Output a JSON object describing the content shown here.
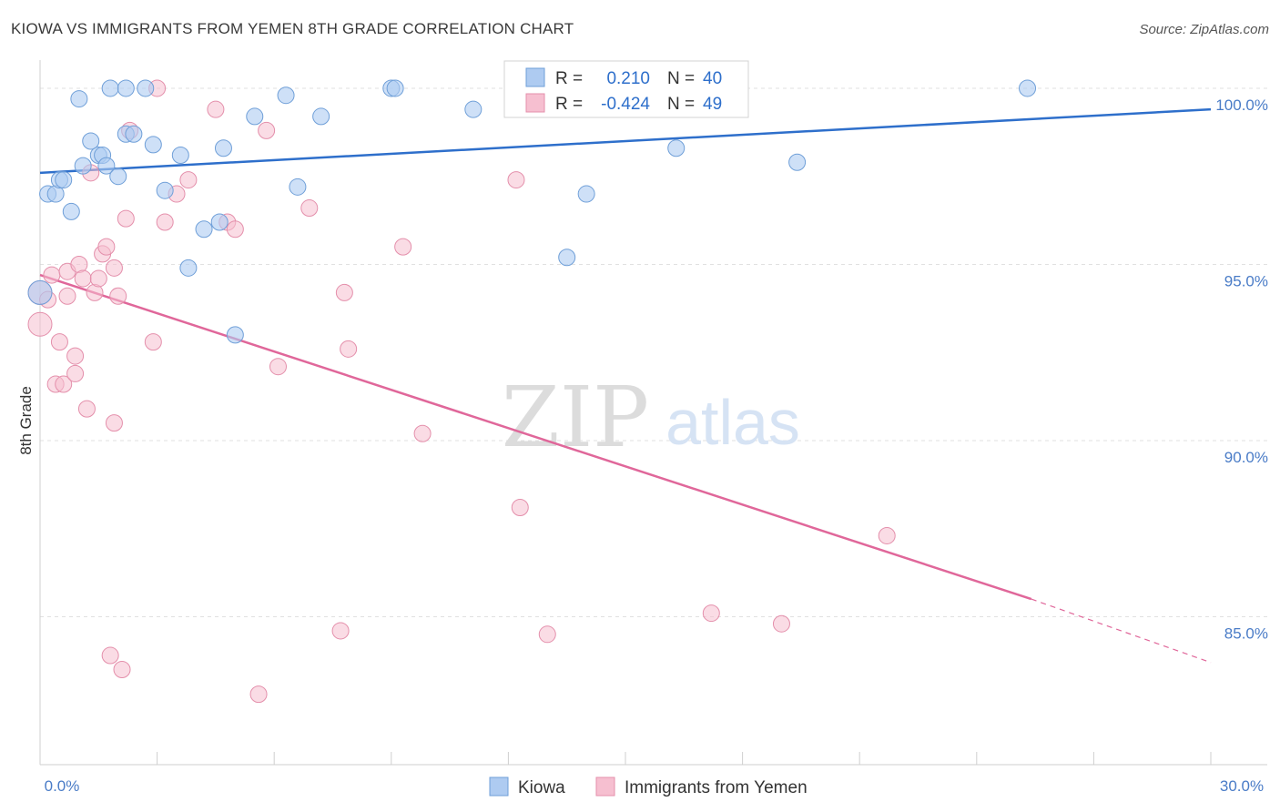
{
  "title": "KIOWA VS IMMIGRANTS FROM YEMEN 8TH GRADE CORRELATION CHART",
  "source": "Source: ZipAtlas.com",
  "watermark": {
    "zip": "ZIP",
    "atlas": "atlas"
  },
  "colors": {
    "blue_fill": "#aecbf1",
    "blue_stroke": "#6f9fd8",
    "blue_line": "#2e6fcb",
    "pink_fill": "#f6bfd0",
    "pink_stroke": "#e48fab",
    "pink_line": "#e0679a",
    "tick_text": "#4a7cc7",
    "grid": "#e1e1e1"
  },
  "legend": {
    "rows": [
      {
        "r_label": "R =",
        "r_value": "0.210",
        "n_label": "N =",
        "n_value": "40"
      },
      {
        "r_label": "R =",
        "r_value": "-0.424",
        "n_label": "N =",
        "n_value": "49"
      }
    ]
  },
  "chart_data": {
    "type": "scatter",
    "xlabel": "",
    "ylabel": "8th Grade",
    "xlim": [
      0,
      30
    ],
    "ylim": [
      80.8,
      100.8
    ],
    "x_tick_labels": [
      {
        "value": 0,
        "label": "0.0%"
      },
      {
        "value": 30,
        "label": "30.0%"
      }
    ],
    "y_tick_labels": [
      {
        "value": 100,
        "label": "100.0%"
      },
      {
        "value": 95,
        "label": "95.0%"
      },
      {
        "value": 90,
        "label": "90.0%"
      },
      {
        "value": 85,
        "label": "85.0%"
      }
    ],
    "grid": true,
    "legend_position": "top-center",
    "series": [
      {
        "name": "Kiowa",
        "trend": {
          "x": [
            0,
            30
          ],
          "y": [
            97.6,
            99.4
          ],
          "dashed_after": null
        },
        "points": [
          [
            0.2,
            97.0
          ],
          [
            0.4,
            97.0
          ],
          [
            0.5,
            97.4
          ],
          [
            0.6,
            97.4
          ],
          [
            0.8,
            96.5
          ],
          [
            1.0,
            99.7
          ],
          [
            1.1,
            97.8
          ],
          [
            1.3,
            98.5
          ],
          [
            1.5,
            98.1
          ],
          [
            1.6,
            98.1
          ],
          [
            1.7,
            97.8
          ],
          [
            1.8,
            100.0
          ],
          [
            2.0,
            97.5
          ],
          [
            2.2,
            100.0
          ],
          [
            2.2,
            98.7
          ],
          [
            2.4,
            98.7
          ],
          [
            2.7,
            100.0
          ],
          [
            2.9,
            98.4
          ],
          [
            3.2,
            97.1
          ],
          [
            3.6,
            98.1
          ],
          [
            3.8,
            94.9
          ],
          [
            4.2,
            96.0
          ],
          [
            4.6,
            96.2
          ],
          [
            4.7,
            98.3
          ],
          [
            5.0,
            93.0
          ],
          [
            5.5,
            99.2
          ],
          [
            6.3,
            99.8
          ],
          [
            6.6,
            97.2
          ],
          [
            7.2,
            99.2
          ],
          [
            9.0,
            100.0
          ],
          [
            9.1,
            100.0
          ],
          [
            11.1,
            99.4
          ],
          [
            12.6,
            100.0
          ],
          [
            13.5,
            95.2
          ],
          [
            14.0,
            97.0
          ],
          [
            16.2,
            100.0
          ],
          [
            16.3,
            98.3
          ],
          [
            19.4,
            97.9
          ],
          [
            25.3,
            100.0
          ],
          [
            0.0,
            94.2
          ]
        ]
      },
      {
        "name": "Immigrants from Yemen",
        "trend": {
          "x": [
            0,
            25.4
          ],
          "y": [
            94.7,
            85.5
          ],
          "dashed_to": {
            "x": 30,
            "y": 83.7
          }
        },
        "points": [
          [
            0.0,
            94.2
          ],
          [
            0.0,
            93.3
          ],
          [
            0.2,
            94.0
          ],
          [
            0.3,
            94.7
          ],
          [
            0.4,
            91.6
          ],
          [
            0.5,
            92.8
          ],
          [
            0.6,
            91.6
          ],
          [
            0.7,
            94.1
          ],
          [
            0.7,
            94.8
          ],
          [
            0.9,
            91.9
          ],
          [
            0.9,
            92.4
          ],
          [
            1.0,
            95.0
          ],
          [
            1.1,
            94.6
          ],
          [
            1.2,
            90.9
          ],
          [
            1.3,
            97.6
          ],
          [
            1.4,
            94.2
          ],
          [
            1.5,
            94.6
          ],
          [
            1.6,
            95.3
          ],
          [
            1.7,
            95.5
          ],
          [
            1.8,
            83.9
          ],
          [
            1.9,
            90.5
          ],
          [
            1.9,
            94.9
          ],
          [
            2.0,
            94.1
          ],
          [
            2.1,
            83.5
          ],
          [
            2.2,
            96.3
          ],
          [
            2.3,
            98.8
          ],
          [
            2.9,
            92.8
          ],
          [
            3.0,
            100.0
          ],
          [
            3.2,
            96.2
          ],
          [
            3.5,
            97.0
          ],
          [
            3.8,
            97.4
          ],
          [
            4.5,
            99.4
          ],
          [
            4.8,
            96.2
          ],
          [
            5.0,
            96.0
          ],
          [
            5.6,
            82.8
          ],
          [
            5.8,
            98.8
          ],
          [
            6.1,
            92.1
          ],
          [
            6.9,
            96.6
          ],
          [
            7.7,
            84.6
          ],
          [
            7.8,
            94.2
          ],
          [
            7.9,
            92.6
          ],
          [
            9.3,
            95.5
          ],
          [
            9.8,
            90.2
          ],
          [
            12.2,
            97.4
          ],
          [
            12.3,
            88.1
          ],
          [
            13.0,
            84.5
          ],
          [
            17.2,
            85.1
          ],
          [
            19.0,
            84.8
          ],
          [
            21.7,
            87.3
          ]
        ]
      }
    ]
  },
  "bottom_legend": [
    "Kiowa",
    "Immigrants from Yemen"
  ]
}
